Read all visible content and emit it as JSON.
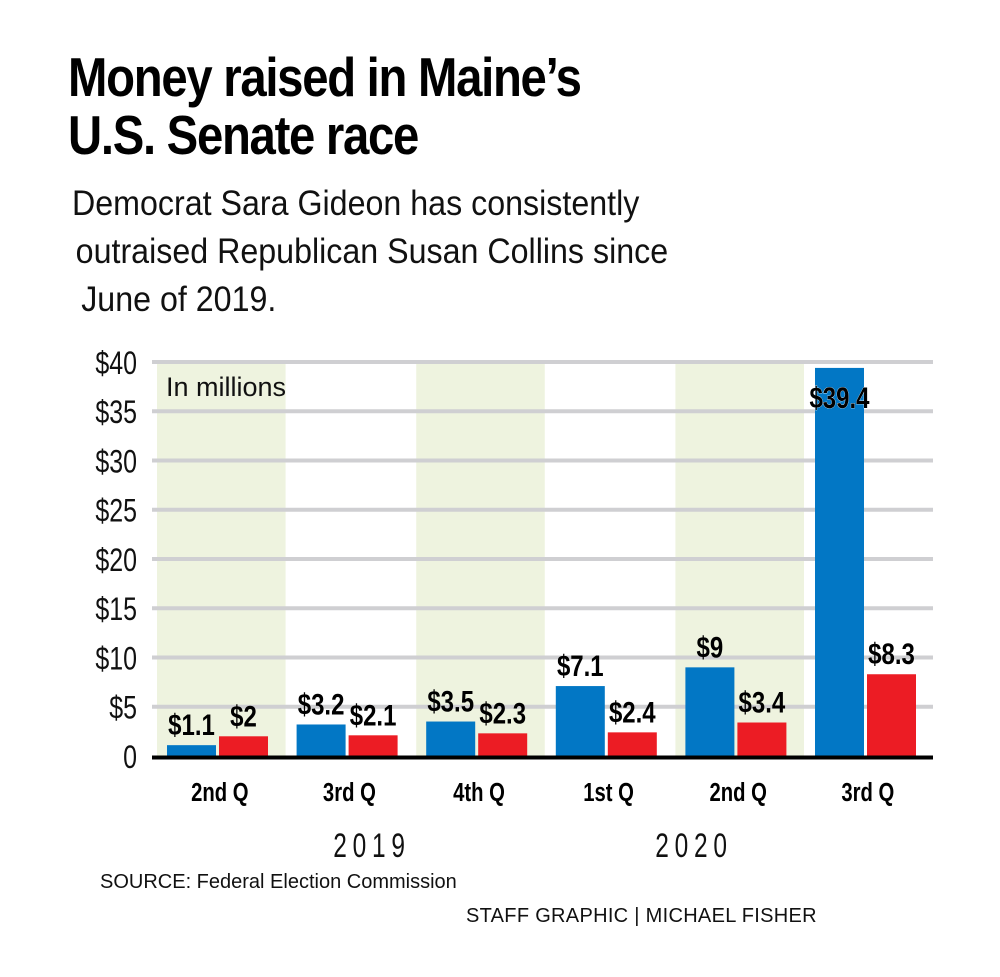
{
  "header": {
    "title_lines": [
      "Money raised in Maine’s",
      "U.S. Senate race"
    ],
    "subtitle_lines": [
      "Democrat Sara Gideon has consistently",
      "outraised Republican Susan Collins since",
      "June of 2019."
    ]
  },
  "footer": {
    "source": "SOURCE: Federal Election Commission",
    "credit": "STAFF GRAPHIC | MICHAEL FISHER"
  },
  "colors": {
    "gideon": "#0277c5",
    "collins": "#ec1c24",
    "band": "#eef3df",
    "grid": "#cfcfd2",
    "axis": "#000000"
  },
  "chart_data": {
    "type": "bar",
    "title": "Money raised in Maine’s U.S. Senate race",
    "subtitle": "Democrat Sara Gideon has consistently outraised Republican Susan Collins since June of 2019.",
    "annotation": "In millions",
    "xlabel": "",
    "ylabel": "",
    "ylim": [
      0,
      40
    ],
    "yticks": [
      0,
      5,
      10,
      15,
      20,
      25,
      30,
      35,
      40
    ],
    "ytick_labels": [
      "0",
      "$5",
      "$10",
      "$15",
      "$20",
      "$25",
      "$30",
      "$35",
      "$40"
    ],
    "grid": true,
    "legend": "none",
    "categories": [
      "2nd Q",
      "3rd Q",
      "4th Q",
      "1st Q",
      "2nd Q",
      "3rd Q"
    ],
    "year_groups": [
      {
        "label": "2019",
        "categories": [
          "2nd Q",
          "3rd Q",
          "4th Q"
        ]
      },
      {
        "label": "2020",
        "categories": [
          "1st Q",
          "2nd Q",
          "3rd Q"
        ]
      }
    ],
    "series": [
      {
        "name": "Sara Gideon (Democrat)",
        "color": "#0277c5",
        "values": [
          1.1,
          3.2,
          3.5,
          7.1,
          9,
          39.4
        ],
        "labels": [
          "$1.1",
          "$3.2",
          "$3.5",
          "$7.1",
          "$9",
          "$39.4"
        ]
      },
      {
        "name": "Susan Collins (Republican)",
        "color": "#ec1c24",
        "values": [
          2,
          2.1,
          2.3,
          2.4,
          3.4,
          8.3
        ],
        "labels": [
          "$2",
          "$2.1",
          "$2.3",
          "$2.4",
          "$3.4",
          "$8.3"
        ]
      }
    ]
  }
}
